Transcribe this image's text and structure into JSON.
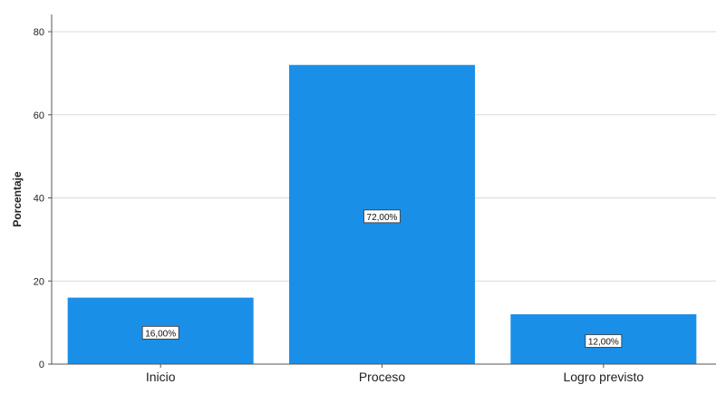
{
  "chart_data": {
    "type": "bar",
    "title": "",
    "xlabel": "",
    "ylabel": "Porcentaje",
    "categories": [
      "Inicio",
      "Proceso",
      "Logro previsto"
    ],
    "values": [
      16,
      72,
      12
    ],
    "data_labels": [
      "16,00%",
      "72,00%",
      "12,00%"
    ],
    "yticks": [
      0,
      20,
      40,
      60,
      80
    ],
    "ylim": [
      0,
      80
    ],
    "grid": true,
    "bar_color": "#1a8fe8",
    "legend": "none"
  }
}
